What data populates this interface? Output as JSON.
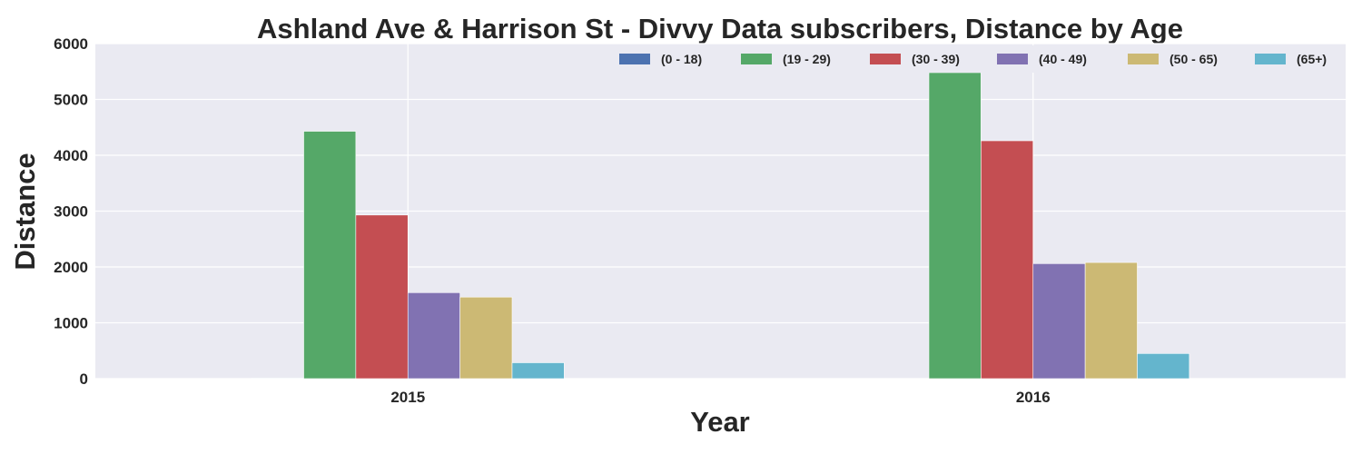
{
  "chart_data": {
    "type": "bar",
    "title": "Ashland Ave & Harrison St - Divvy Data subscribers, Distance by Age",
    "xlabel": "Year",
    "ylabel": "Distance",
    "categories": [
      "2015",
      "2016"
    ],
    "ylim": [
      0,
      6000
    ],
    "yticks": [
      0,
      1000,
      2000,
      3000,
      4000,
      5000,
      6000
    ],
    "grid": true,
    "legend_position": "top-right",
    "series": [
      {
        "name": "(0 - 18)",
        "color": "#4c72b0",
        "values": [
          10,
          0
        ]
      },
      {
        "name": "(19 - 29)",
        "color": "#55a868",
        "values": [
          4430,
          5480
        ]
      },
      {
        "name": "(30 - 39)",
        "color": "#c44e52",
        "values": [
          2930,
          4260
        ]
      },
      {
        "name": "(40 - 49)",
        "color": "#8172b2",
        "values": [
          1540,
          2060
        ]
      },
      {
        "name": "(50 - 65)",
        "color": "#ccb974",
        "values": [
          1460,
          2080
        ]
      },
      {
        "name": "(65+)",
        "color": "#64b5cd",
        "values": [
          285,
          450
        ]
      }
    ]
  }
}
